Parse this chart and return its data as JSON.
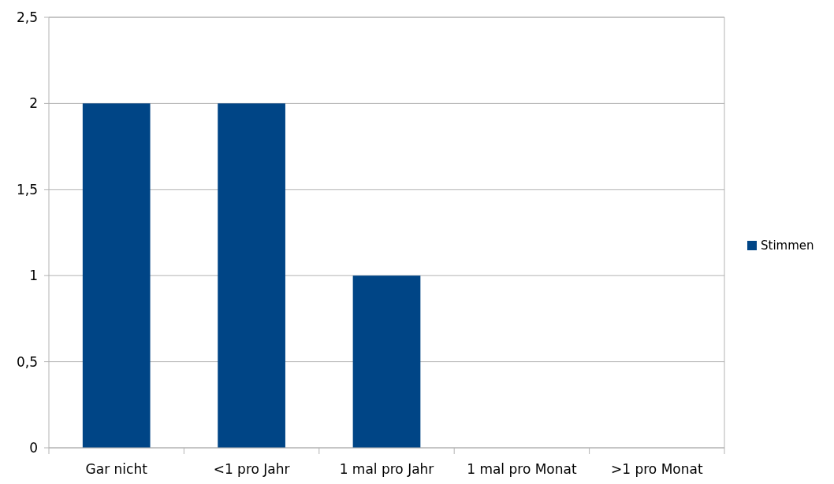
{
  "chart_data": {
    "type": "bar",
    "categories": [
      "Gar nicht",
      "<1 pro Jahr",
      "1 mal pro Jahr",
      "1 mal pro Monat",
      ">1 pro Monat"
    ],
    "series": [
      {
        "name": "Stimmen",
        "color": "#004586",
        "values": [
          2,
          2,
          1,
          0,
          0
        ]
      }
    ],
    "ylim": [
      0,
      2.5
    ],
    "yticks": [
      0,
      {
        "value": 0.5,
        "label": "0,5"
      },
      1,
      {
        "value": 1.5,
        "label": "1,5"
      },
      2,
      {
        "value": 2.5,
        "label": "2,5"
      }
    ],
    "grid": "y",
    "legend": "right"
  }
}
